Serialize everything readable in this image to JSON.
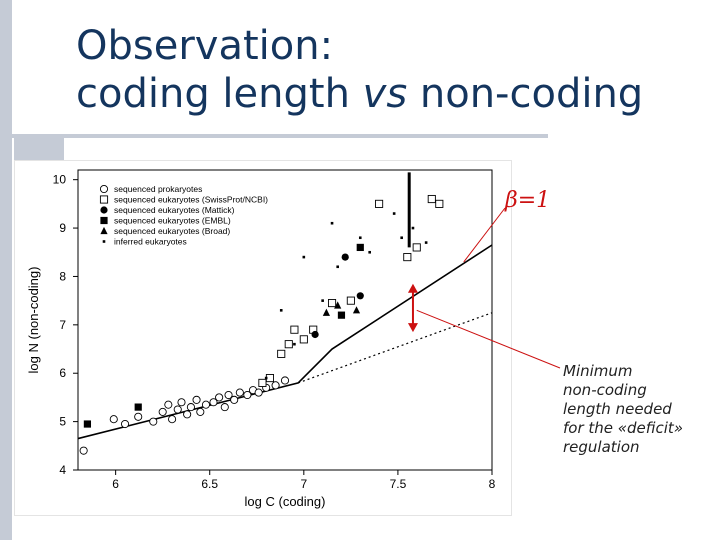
{
  "slide": {
    "title_line1": "Observation:",
    "title_line2_pre": "coding length ",
    "title_line2_em": "vs",
    "title_line2_post": " non-coding",
    "beta_label": "β=1",
    "note_lines": [
      "Minimum",
      "non-coding",
      "length needed",
      "for the «deficit»",
      "regulation"
    ],
    "colors": {
      "title": "#14355e",
      "accent": "#cc1111",
      "decor": "#c5cbd6"
    }
  },
  "chart_data": {
    "type": "scatter",
    "xlabel": "log C (coding)",
    "ylabel": "log N (non-coding)",
    "xlim": [
      5.8,
      8.0
    ],
    "ylim": [
      4.0,
      10.2
    ],
    "x_ticks": [
      "6",
      "6.5",
      "7",
      "7.5",
      "8"
    ],
    "y_ticks": [
      "4",
      "5",
      "6",
      "7",
      "8",
      "9",
      "10"
    ],
    "legend_position": "top-left",
    "legend": [
      "sequenced prokaryotes",
      "sequenced eukaryotes (SwissProt/NCBI)",
      "sequenced eukaryotes (Mattick)",
      "sequenced eukaryotes (EMBL)",
      "sequenced eukaryotes (Broad)",
      "inferred eukaryotes"
    ],
    "series": [
      {
        "marker": "circle-open",
        "points": [
          [
            5.83,
            4.4
          ],
          [
            5.99,
            5.05
          ],
          [
            6.05,
            4.95
          ],
          [
            6.12,
            5.1
          ],
          [
            6.2,
            5.0
          ],
          [
            6.25,
            5.2
          ],
          [
            6.28,
            5.35
          ],
          [
            6.3,
            5.05
          ],
          [
            6.33,
            5.25
          ],
          [
            6.35,
            5.4
          ],
          [
            6.38,
            5.15
          ],
          [
            6.4,
            5.3
          ],
          [
            6.43,
            5.45
          ],
          [
            6.45,
            5.2
          ],
          [
            6.48,
            5.35
          ],
          [
            6.52,
            5.4
          ],
          [
            6.55,
            5.5
          ],
          [
            6.58,
            5.3
          ],
          [
            6.6,
            5.55
          ],
          [
            6.63,
            5.45
          ],
          [
            6.66,
            5.6
          ],
          [
            6.7,
            5.55
          ],
          [
            6.73,
            5.65
          ],
          [
            6.76,
            5.6
          ],
          [
            6.8,
            5.7
          ],
          [
            6.85,
            5.75
          ],
          [
            6.9,
            5.85
          ]
        ]
      },
      {
        "marker": "square-open",
        "points": [
          [
            6.78,
            5.8
          ],
          [
            6.82,
            5.9
          ],
          [
            6.88,
            6.4
          ],
          [
            6.92,
            6.6
          ],
          [
            6.95,
            6.9
          ],
          [
            7.0,
            6.7
          ],
          [
            7.05,
            6.9
          ],
          [
            7.15,
            7.45
          ],
          [
            7.25,
            7.5
          ],
          [
            7.4,
            9.5
          ],
          [
            7.55,
            8.4
          ],
          [
            7.6,
            8.6
          ],
          [
            7.68,
            9.6
          ],
          [
            7.72,
            9.5
          ]
        ]
      },
      {
        "marker": "circle-filled",
        "points": [
          [
            7.06,
            6.8
          ],
          [
            7.22,
            8.4
          ],
          [
            7.3,
            7.6
          ]
        ]
      },
      {
        "marker": "square-filled",
        "points": [
          [
            5.85,
            4.95
          ],
          [
            6.12,
            5.3
          ],
          [
            7.2,
            7.2
          ],
          [
            7.3,
            8.6
          ]
        ]
      },
      {
        "marker": "triangle-filled",
        "points": [
          [
            7.12,
            7.25
          ],
          [
            7.18,
            7.4
          ],
          [
            7.28,
            7.3
          ]
        ]
      },
      {
        "marker": "dot",
        "points": [
          [
            6.8,
            5.9
          ],
          [
            6.88,
            7.3
          ],
          [
            6.95,
            6.6
          ],
          [
            7.0,
            8.4
          ],
          [
            7.1,
            7.5
          ],
          [
            7.15,
            9.1
          ],
          [
            7.18,
            8.2
          ],
          [
            7.3,
            8.8
          ],
          [
            7.35,
            8.5
          ],
          [
            7.48,
            9.3
          ],
          [
            7.52,
            8.8
          ],
          [
            7.58,
            9.0
          ],
          [
            7.65,
            8.7
          ]
        ]
      }
    ],
    "fit_lines": [
      {
        "style": "solid",
        "points": [
          [
            5.8,
            4.65
          ],
          [
            6.97,
            5.8
          ],
          [
            7.15,
            6.5
          ],
          [
            8.0,
            8.65
          ]
        ]
      },
      {
        "style": "dotted",
        "points": [
          [
            6.97,
            5.8
          ],
          [
            8.0,
            7.25
          ]
        ]
      }
    ],
    "annotation": {
      "style": "double-arrow",
      "x": 7.58,
      "from_y": 6.85,
      "to_y": 7.85
    }
  }
}
